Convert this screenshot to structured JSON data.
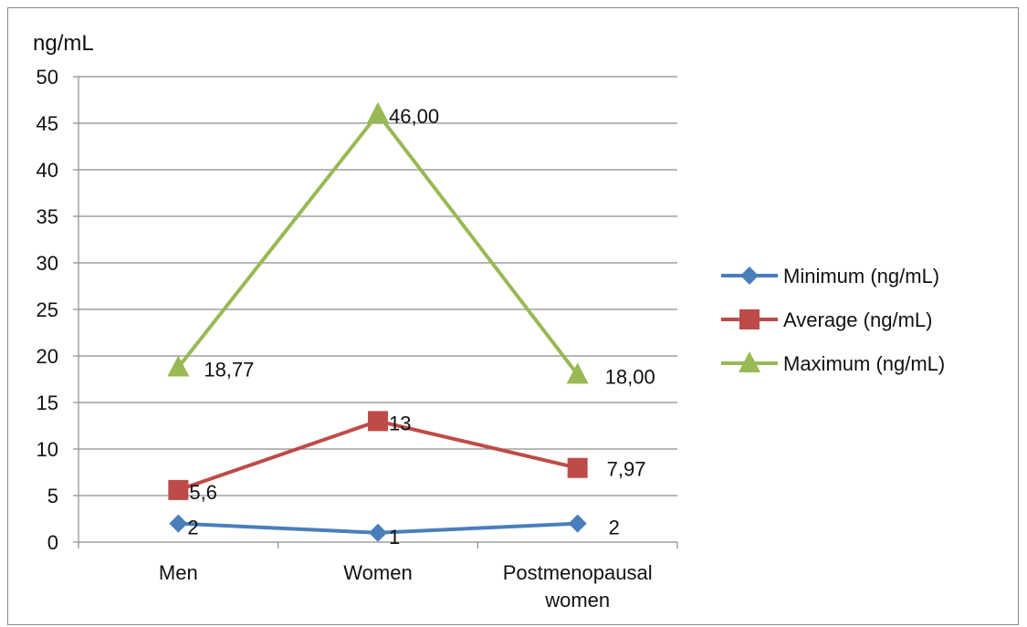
{
  "chart_data": {
    "type": "line",
    "ylabel": "ng/mL",
    "ylim": [
      0,
      50
    ],
    "yticks": [
      0,
      5,
      10,
      15,
      20,
      25,
      30,
      35,
      40,
      45,
      50
    ],
    "grid": true,
    "legend_position": "right",
    "categories": [
      "Men",
      "Women",
      "Postmenopausal women"
    ],
    "series": [
      {
        "name": "Minimum (ng/mL)",
        "values": [
          2,
          1,
          2
        ],
        "labels": [
          "2",
          "1",
          "2"
        ],
        "color": "#4a7ebb",
        "marker": "diamond"
      },
      {
        "name": "Average (ng/mL)",
        "values": [
          5.6,
          13,
          7.97
        ],
        "labels": [
          "5,6",
          "13",
          "7,97"
        ],
        "color": "#be4b48",
        "marker": "square"
      },
      {
        "name": "Maximum (ng/mL)",
        "values": [
          18.77,
          46.0,
          18.0
        ],
        "labels": [
          "18,77",
          "46,00",
          "18,00"
        ],
        "color": "#98b954",
        "marker": "triangle"
      }
    ]
  }
}
